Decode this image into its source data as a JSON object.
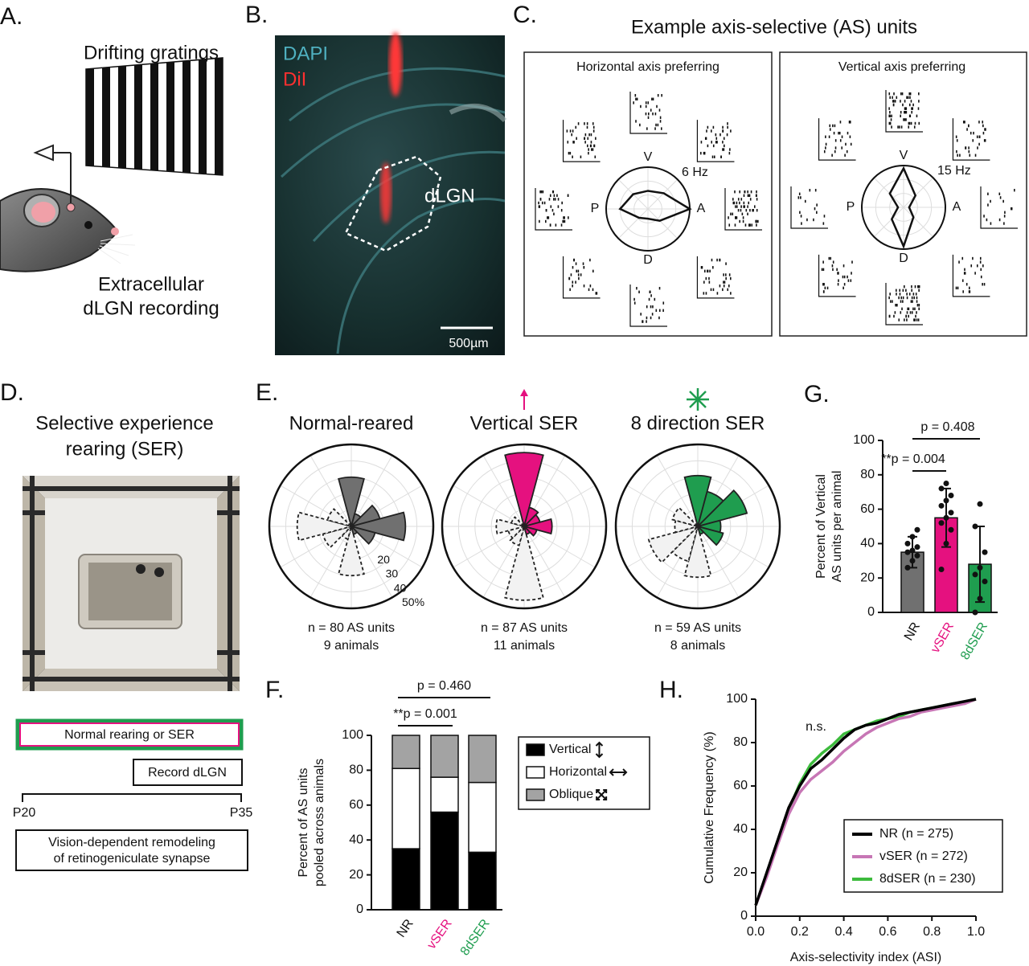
{
  "figure": {
    "panel_labels": [
      "A.",
      "B.",
      "C.",
      "D.",
      "E.",
      "F.",
      "G.",
      "H."
    ],
    "a": {
      "stimulus": "Drifting gratings",
      "recording": [
        "Extracellular",
        "dLGN recording"
      ]
    },
    "b": {
      "stains": [
        "DAPI",
        "DiI"
      ],
      "region": "dLGN",
      "scale_bar": "500µm"
    },
    "c": {
      "title": "Example axis-selective (AS) units"
    },
    "d": {
      "title": [
        "Selective experience",
        "rearing (SER)"
      ],
      "timeline": {
        "rearing": "Normal rearing or SER",
        "recording": "Record dLGN",
        "start": "P20",
        "end": "P35",
        "outcome": [
          "Vision-dependent remodeling",
          "of retinogeniculate synapse"
        ]
      }
    }
  },
  "chart_data": [
    {
      "type": "rose",
      "title": "Normal-reared",
      "color": "#707070",
      "angles": [
        90,
        60,
        30,
        0,
        -30,
        -60
      ],
      "values": [
        30,
        8,
        18,
        33,
        15,
        5
      ],
      "rlim": [
        0,
        50
      ],
      "rgrid": [
        10,
        20,
        30,
        40,
        50
      ],
      "rtick_labels": [
        20,
        30,
        40,
        {
          "value": 50,
          "label": "50%"
        }
      ],
      "annotations": [
        "n = 80 AS units",
        "9 animals"
      ]
    },
    {
      "type": "rose",
      "title": "Vertical SER",
      "color": "#e5117f",
      "angles": [
        90,
        60,
        30,
        0,
        -30,
        -60
      ],
      "values": [
        45,
        12,
        10,
        17,
        8,
        5
      ],
      "rlim": [
        0,
        50
      ],
      "rgrid": [
        10,
        20,
        30,
        40,
        50
      ],
      "annotations": [
        "n = 87 AS units",
        "11 animals"
      ]
    },
    {
      "type": "rose",
      "title": "8 direction SER",
      "color": "#1f9d4f",
      "angles": [
        90,
        60,
        30,
        0,
        -30,
        -60
      ],
      "values": [
        31,
        22,
        31,
        14,
        16,
        5
      ],
      "rlim": [
        0,
        50
      ],
      "rgrid": [
        10,
        20,
        30,
        40,
        50
      ],
      "annotations": [
        "n = 59 AS units",
        "8 animals"
      ]
    },
    {
      "type": "stacked_bar",
      "ylabel": [
        "Percent of AS units",
        "pooled across animals"
      ],
      "categories": [
        "NR",
        "vSER",
        "8dSER"
      ],
      "category_colors": [
        "#111111",
        "#e5117f",
        "#1f9d4f"
      ],
      "series": [
        {
          "name": "Vertical",
          "color": "#000000",
          "values": [
            35,
            56,
            33
          ]
        },
        {
          "name": "Horizontal",
          "color": "#ffffff",
          "values": [
            46,
            20,
            40
          ]
        },
        {
          "name": "Oblique",
          "color": "#a3a3a3",
          "values": [
            19,
            24,
            27
          ]
        }
      ],
      "ylim": [
        0,
        100
      ],
      "yticks": [
        0,
        20,
        40,
        60,
        80,
        100
      ],
      "annotations": [
        "p = 0.460",
        "**p = 0.001"
      ]
    },
    {
      "type": "bar_points",
      "ylabel": [
        "Percent of Vertical",
        "AS units per animal"
      ],
      "categories": [
        "NR",
        "vSER",
        "8dSER"
      ],
      "colors": [
        "#707070",
        "#e5117f",
        "#1f9d4f"
      ],
      "values": [
        35,
        55,
        28
      ],
      "errors": [
        9,
        17,
        22
      ],
      "points": [
        [
          26,
          30,
          33,
          35,
          36,
          38,
          40,
          44,
          48
        ],
        [
          25,
          40,
          48,
          52,
          55,
          58,
          62,
          65,
          68,
          72,
          75
        ],
        [
          0,
          8,
          18,
          22,
          26,
          35,
          50,
          63
        ]
      ],
      "ylim": [
        0,
        100
      ],
      "yticks": [
        0,
        20,
        40,
        60,
        80,
        100
      ],
      "annotations": [
        "p = 0.408",
        "**p = 0.004"
      ]
    },
    {
      "type": "line",
      "xlabel": "Axis-selectivity index (ASI)",
      "ylabel": "Cumulative Frequency (%)",
      "x": [
        0,
        0.05,
        0.1,
        0.15,
        0.2,
        0.25,
        0.3,
        0.35,
        0.4,
        0.45,
        0.5,
        0.55,
        0.6,
        0.65,
        0.7,
        0.75,
        0.8,
        0.85,
        0.9,
        0.95,
        1.0
      ],
      "series": [
        {
          "name": "NR (n = 275)",
          "color": "#000000",
          "values": [
            5,
            20,
            35,
            50,
            60,
            68,
            72,
            77,
            82,
            86,
            88,
            89,
            91,
            93,
            94,
            95,
            96,
            97,
            98,
            99,
            100
          ]
        },
        {
          "name": "vSER (n = 272)",
          "color": "#c776b5",
          "values": [
            5,
            18,
            33,
            47,
            57,
            63,
            67,
            71,
            76,
            80,
            84,
            87,
            89,
            91,
            92,
            94,
            95,
            96,
            97,
            98,
            100
          ]
        },
        {
          "name": "8dSER (n = 230)",
          "color": "#3dbb3d",
          "values": [
            5,
            19,
            34,
            49,
            61,
            70,
            75,
            79,
            84,
            86,
            88,
            90,
            91,
            92,
            94,
            95,
            96,
            97,
            98,
            98,
            100
          ]
        }
      ],
      "xlim": [
        0,
        1
      ],
      "ylim": [
        0,
        100
      ],
      "xticks": [
        {
          "value": 0,
          "label": "0.0"
        },
        {
          "value": 0.2,
          "label": "0.2"
        },
        {
          "value": 0.4,
          "label": "0.4"
        },
        {
          "value": 0.6,
          "label": "0.6"
        },
        {
          "value": 0.8,
          "label": "0.8"
        },
        {
          "value": 1.0,
          "label": "1.0"
        }
      ],
      "yticks": [
        0,
        20,
        40,
        60,
        80,
        100
      ],
      "annotations": [
        "n.s."
      ],
      "legend": "lower right"
    },
    {
      "type": "radar",
      "title": "Horizontal axis preferring",
      "axis_labels": [
        "V",
        "A",
        "D",
        "P"
      ],
      "scale_label": "6 Hz",
      "angles": [
        0,
        45,
        90,
        135,
        180,
        225,
        270,
        315
      ],
      "values": [
        6,
        3.2,
        2.6,
        3,
        4,
        1.8,
        1.4,
        2.4
      ],
      "rlim": [
        0,
        6
      ]
    },
    {
      "type": "radar",
      "title": "Vertical axis preferring",
      "axis_labels": [
        "V",
        "A",
        "D",
        "P"
      ],
      "scale_label": "15 Hz",
      "angles": [
        0,
        45,
        90,
        135,
        180,
        225,
        270,
        315
      ],
      "values": [
        2,
        6,
        14,
        7,
        2,
        6,
        14,
        5
      ],
      "rlim": [
        0,
        15
      ]
    }
  ]
}
